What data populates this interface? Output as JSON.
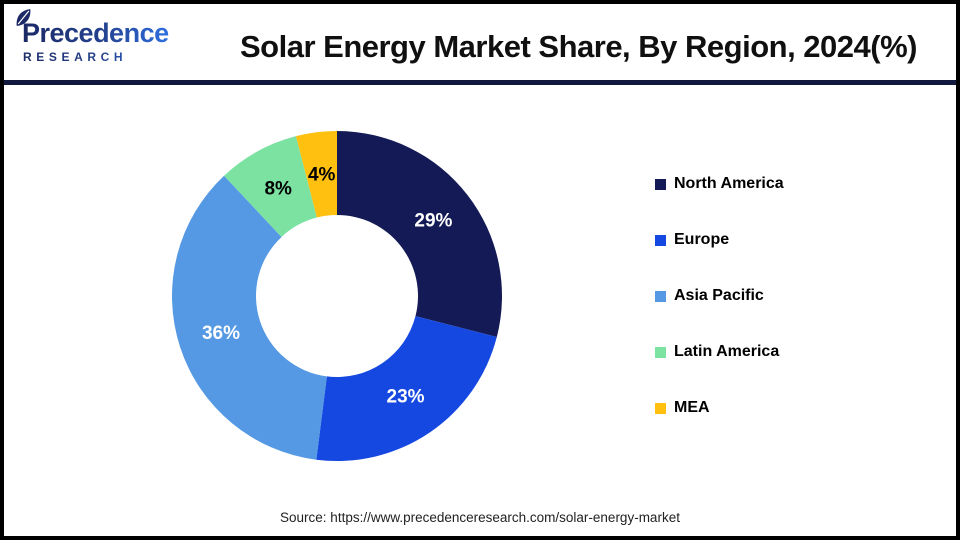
{
  "page": {
    "background": "#FFFFFF",
    "frame_color": "#000000",
    "divider_color": "#12193F"
  },
  "header": {
    "logo": {
      "line1": "Precedence",
      "line2": "RESEARCH",
      "icon": "leaf-icon",
      "color_start": "#1B2A66",
      "color_end": "#2E6FE0"
    },
    "title": "Solar Energy Market Share, By Region, 2024(%)"
  },
  "chart_data": {
    "type": "pie",
    "donut": true,
    "title": "Solar Energy Market Share, By Region, 2024(%)",
    "categories": [
      "North America",
      "Europe",
      "Asia Pacific",
      "Latin America",
      "MEA"
    ],
    "values": [
      29,
      23,
      36,
      8,
      4
    ],
    "unit": "%",
    "data_labels": [
      "29%",
      "23%",
      "36%",
      "8%",
      "4%"
    ],
    "colors": [
      "#131A55",
      "#1548E0",
      "#5599E4",
      "#7CE2A2",
      "#FFC010"
    ],
    "label_colors": [
      "#FFFFFF",
      "#FFFFFF",
      "#FFFFFF",
      "#000000",
      "#000000"
    ],
    "start_angle_deg": 0,
    "direction": "clockwise",
    "inner_radius_ratio": 0.49,
    "legend_position": "right",
    "grid": false
  },
  "footer": {
    "source": "Source: https://www.precedenceresearch.com/solar-energy-market"
  }
}
